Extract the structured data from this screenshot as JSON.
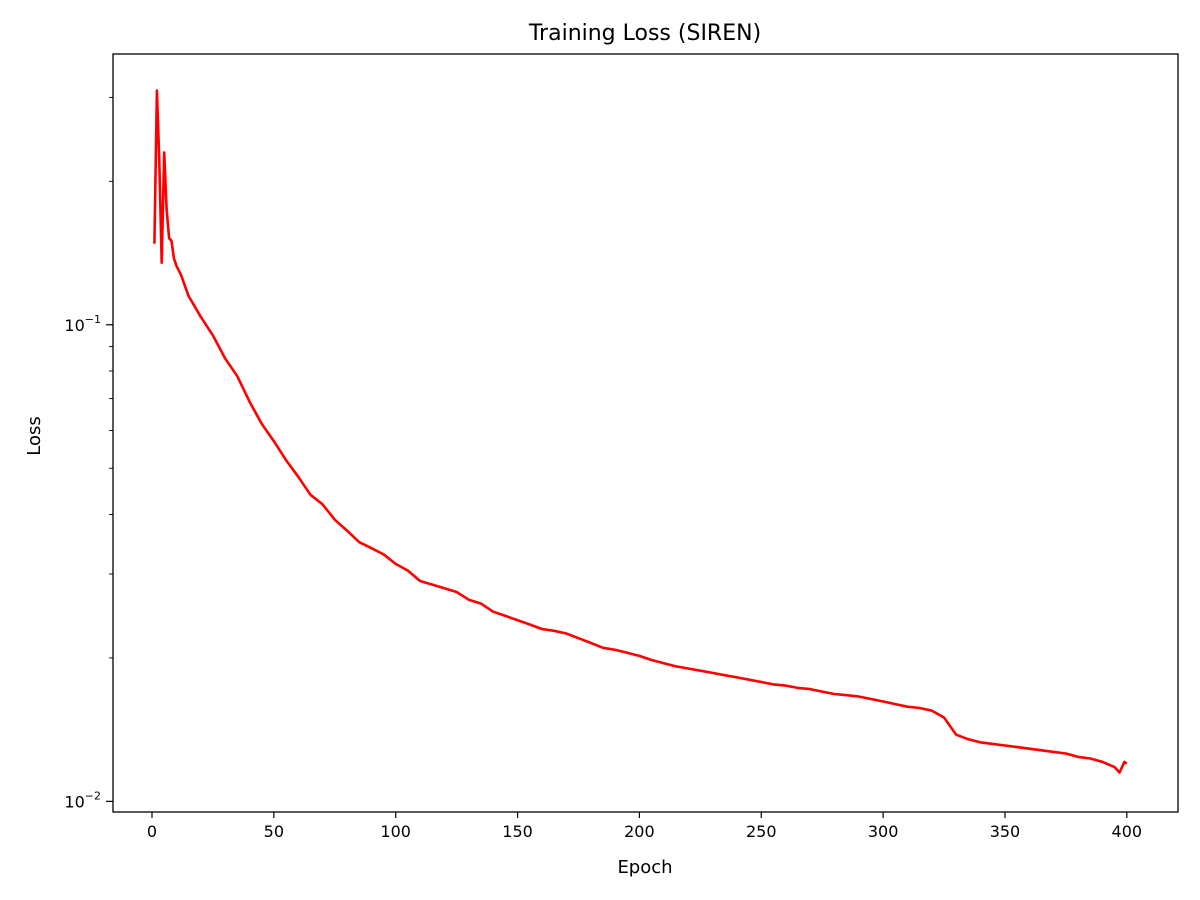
{
  "chart_data": {
    "type": "line",
    "title": "Training Loss (SIREN)",
    "xlabel": "Epoch",
    "ylabel": "Loss",
    "xlim": [
      -16,
      421
    ],
    "ylim": [
      0.0095,
      0.37
    ],
    "yscale": "log",
    "xticks": [
      0,
      50,
      100,
      150,
      200,
      250,
      300,
      350,
      400
    ],
    "yticks": [
      {
        "value": 0.1,
        "base": "10",
        "exp": "−1"
      },
      {
        "value": 0.01,
        "base": "10",
        "exp": "−2"
      }
    ],
    "grid": false,
    "legend": "none",
    "color": "#ff0000",
    "series": [
      {
        "x": [
          1,
          2,
          3,
          4,
          5,
          6,
          7,
          8,
          9,
          10,
          12,
          15,
          20,
          25,
          30,
          35,
          40,
          45,
          50,
          55,
          60,
          65,
          70,
          75,
          80,
          85,
          90,
          95,
          100,
          105,
          110,
          115,
          120,
          125,
          130,
          135,
          140,
          145,
          150,
          155,
          160,
          165,
          170,
          175,
          180,
          185,
          190,
          195,
          200,
          205,
          210,
          215,
          220,
          225,
          230,
          235,
          240,
          245,
          250,
          255,
          260,
          265,
          270,
          275,
          280,
          285,
          290,
          295,
          300,
          305,
          310,
          315,
          320,
          325,
          330,
          335,
          340,
          345,
          350,
          355,
          360,
          365,
          370,
          375,
          380,
          385,
          390,
          395,
          397,
          399,
          400
        ],
        "y": [
          0.148,
          0.31,
          0.22,
          0.135,
          0.23,
          0.175,
          0.152,
          0.15,
          0.138,
          0.133,
          0.127,
          0.115,
          0.104,
          0.095,
          0.085,
          0.078,
          0.069,
          0.062,
          0.057,
          0.052,
          0.048,
          0.044,
          0.042,
          0.039,
          0.037,
          0.035,
          0.034,
          0.033,
          0.0315,
          0.0305,
          0.029,
          0.0285,
          0.028,
          0.0275,
          0.0265,
          0.026,
          0.025,
          0.0245,
          0.024,
          0.0235,
          0.023,
          0.0228,
          0.0225,
          0.022,
          0.0215,
          0.021,
          0.0208,
          0.0205,
          0.0202,
          0.0198,
          0.0195,
          0.0192,
          0.019,
          0.0188,
          0.0186,
          0.0184,
          0.0182,
          0.018,
          0.0178,
          0.0176,
          0.0175,
          0.0173,
          0.0172,
          0.017,
          0.0168,
          0.0167,
          0.0166,
          0.0164,
          0.0162,
          0.016,
          0.0158,
          0.0157,
          0.0155,
          0.015,
          0.0138,
          0.0135,
          0.0133,
          0.0132,
          0.0131,
          0.013,
          0.0129,
          0.0128,
          0.0127,
          0.0126,
          0.0124,
          0.0123,
          0.0121,
          0.0118,
          0.0115,
          0.0121,
          0.012
        ]
      }
    ]
  }
}
